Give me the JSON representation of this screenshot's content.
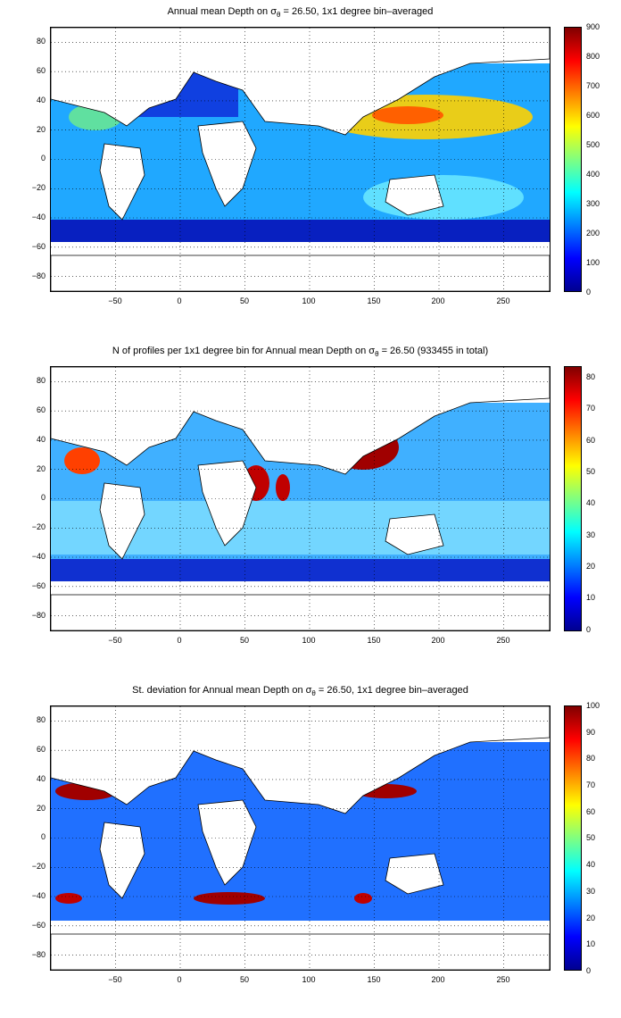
{
  "panels": [
    {
      "title_prefix": "Annual mean Depth on ",
      "title_sigma": "σ",
      "title_sub": "θ",
      "title_suffix": " = 26.50, 1x1 degree bin–averaged",
      "colorbar_ticks": [
        "900",
        "800",
        "700",
        "600",
        "500",
        "400",
        "300",
        "200",
        "100",
        "0"
      ],
      "colorbar_range": [
        0,
        900
      ]
    },
    {
      "title_prefix": "N of profiles per 1x1 degree bin for Annual mean Depth on ",
      "title_sigma": "σ",
      "title_sub": "θ",
      "title_suffix": " = 26.50 (933455 in total)",
      "colorbar_ticks": [
        "80",
        "70",
        "60",
        "50",
        "40",
        "30",
        "20",
        "10",
        "0"
      ],
      "colorbar_range": [
        0,
        84
      ]
    },
    {
      "title_prefix": "St. deviation for Annual mean Depth on ",
      "title_sigma": "σ",
      "title_sub": "θ",
      "title_suffix": " = 26.50, 1x1 degree bin–averaged",
      "colorbar_ticks": [
        "100",
        "90",
        "80",
        "70",
        "60",
        "50",
        "40",
        "30",
        "20",
        "10",
        "0"
      ],
      "colorbar_range": [
        0,
        100
      ]
    }
  ],
  "x_ticks": [
    "−50",
    "0",
    "50",
    "100",
    "150",
    "200",
    "250"
  ],
  "y_ticks": [
    "80",
    "60",
    "40",
    "20",
    "0",
    "−20",
    "−40",
    "−60",
    "−80"
  ],
  "x_range": [
    -95,
    290
  ],
  "y_range": [
    -90,
    90
  ],
  "colormap": "jet",
  "grid": "dotted"
}
